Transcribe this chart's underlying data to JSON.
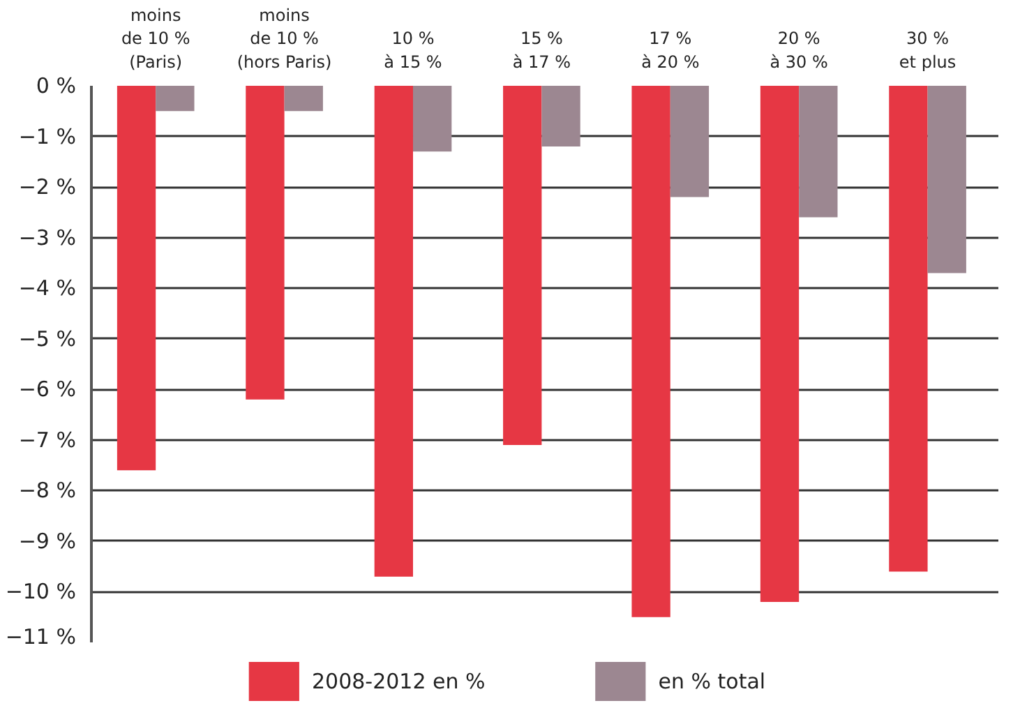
{
  "chart_data": {
    "type": "bar",
    "categories": [
      "moins\nde 10 %\n(Paris)",
      "moins\nde 10 %\n(hors Paris)",
      "10 %\nà 15 %",
      "15 %\nà 17 %",
      "17 %\nà 20 %",
      "20 %\nà 30 %",
      "30 %\net plus"
    ],
    "series": [
      {
        "name": "2008-2012 en %",
        "color": "#e63744",
        "values": [
          -7.6,
          -6.2,
          -9.7,
          -7.1,
          -10.5,
          -10.2,
          -9.6
        ]
      },
      {
        "name": "en % total",
        "color": "#9c8791",
        "values": [
          -0.5,
          -0.5,
          -1.3,
          -1.2,
          -2.2,
          -2.6,
          -3.7
        ]
      }
    ],
    "ylim": [
      -11,
      0
    ],
    "yticks": [
      {
        "value": 0,
        "label": "0 %"
      },
      {
        "value": -1,
        "label": "−1 %"
      },
      {
        "value": -2,
        "label": "−2 %"
      },
      {
        "value": -3,
        "label": "−3 %"
      },
      {
        "value": -4,
        "label": "−4 %"
      },
      {
        "value": -5,
        "label": "−5 %"
      },
      {
        "value": -6,
        "label": "−6 %"
      },
      {
        "value": -7,
        "label": "−7 %"
      },
      {
        "value": -8,
        "label": "−8 %"
      },
      {
        "value": -9,
        "label": "−9 %"
      },
      {
        "value": -10,
        "label": "−10 %"
      },
      {
        "value": -11,
        "label": "−11 %"
      }
    ],
    "grid": "y",
    "legend": "bottom"
  }
}
